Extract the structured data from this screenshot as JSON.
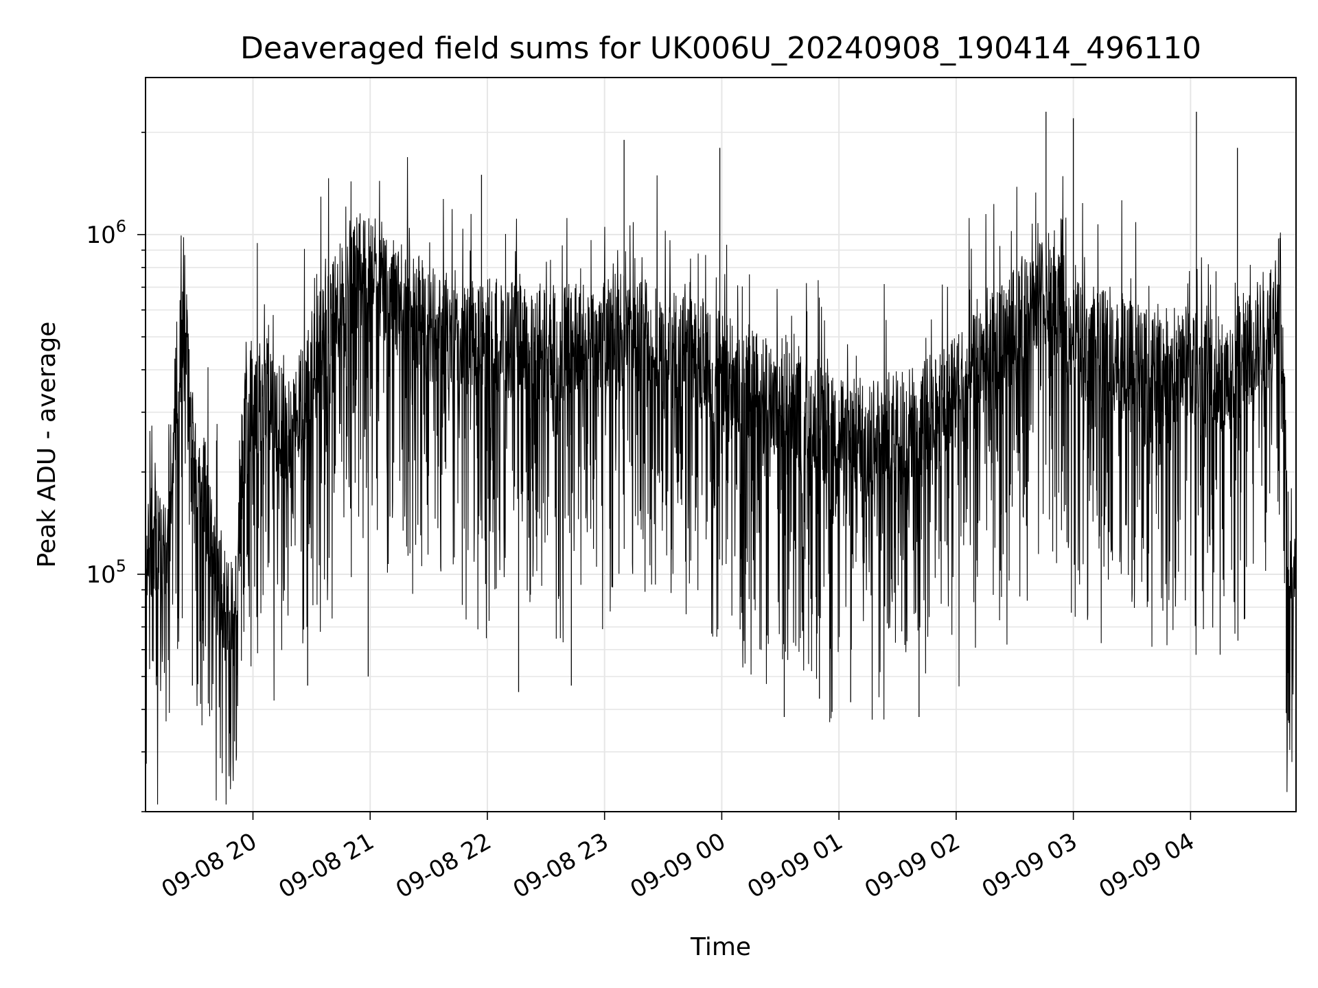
{
  "chart_data": {
    "type": "line",
    "title": "Deaveraged field sums for UK006U_20240908_190414_496110",
    "xlabel": "Time",
    "ylabel": "Peak ADU - average",
    "y_scale": "log",
    "ylim": [
      20000,
      2900000
    ],
    "x_start": "2024-09-08 19:05",
    "x_end": "2024-09-09 04:54",
    "grid": true,
    "line_color": "#000000",
    "x_ticks": [
      {
        "time": "2024-09-08 20:00",
        "label": "09-08 20"
      },
      {
        "time": "2024-09-08 21:00",
        "label": "09-08 21"
      },
      {
        "time": "2024-09-08 22:00",
        "label": "09-08 22"
      },
      {
        "time": "2024-09-08 23:00",
        "label": "09-08 23"
      },
      {
        "time": "2024-09-09 00:00",
        "label": "09-09 00"
      },
      {
        "time": "2024-09-09 01:00",
        "label": "09-09 01"
      },
      {
        "time": "2024-09-09 02:00",
        "label": "09-09 02"
      },
      {
        "time": "2024-09-09 03:00",
        "label": "09-09 03"
      },
      {
        "time": "2024-09-09 04:00",
        "label": "09-09 04"
      }
    ],
    "y_ticks": [
      {
        "value": 100000,
        "base": "10",
        "exp": "5"
      },
      {
        "value": 1000000,
        "base": "10",
        "exp": "6"
      }
    ],
    "series": [
      {
        "points": [
          [
            "2024-09-08 19:05",
            120000
          ],
          [
            "2024-09-08 19:10",
            130000
          ],
          [
            "2024-09-08 19:15",
            110000
          ],
          [
            "2024-09-08 19:20",
            300000
          ],
          [
            "2024-09-08 19:25",
            600000
          ],
          [
            "2024-09-08 19:30",
            200000
          ],
          [
            "2024-09-08 19:35",
            180000
          ],
          [
            "2024-09-08 19:40",
            110000
          ],
          [
            "2024-09-08 19:45",
            90000
          ],
          [
            "2024-09-08 19:50",
            70000
          ],
          [
            "2024-09-08 19:55",
            250000
          ],
          [
            "2024-09-08 20:00",
            350000
          ],
          [
            "2024-09-08 20:10",
            300000
          ],
          [
            "2024-09-08 20:20",
            250000
          ],
          [
            "2024-09-08 20:30",
            400000
          ],
          [
            "2024-09-08 20:40",
            550000
          ],
          [
            "2024-09-08 20:50",
            750000
          ],
          [
            "2024-09-08 21:00",
            800000
          ],
          [
            "2024-09-08 21:15",
            650000
          ],
          [
            "2024-09-08 21:30",
            550000
          ],
          [
            "2024-09-08 21:45",
            500000
          ],
          [
            "2024-09-08 22:00",
            500000
          ],
          [
            "2024-09-08 22:20",
            480000
          ],
          [
            "2024-09-08 22:40",
            480000
          ],
          [
            "2024-09-08 23:00",
            520000
          ],
          [
            "2024-09-08 23:20",
            500000
          ],
          [
            "2024-09-08 23:40",
            450000
          ],
          [
            "2024-09-09 00:00",
            400000
          ],
          [
            "2024-09-09 00:20",
            350000
          ],
          [
            "2024-09-09 00:40",
            300000
          ],
          [
            "2024-09-09 01:00",
            250000
          ],
          [
            "2024-09-09 01:20",
            260000
          ],
          [
            "2024-09-09 01:40",
            280000
          ],
          [
            "2024-09-09 02:00",
            350000
          ],
          [
            "2024-09-09 02:20",
            450000
          ],
          [
            "2024-09-09 02:40",
            650000
          ],
          [
            "2024-09-09 02:50",
            700000
          ],
          [
            "2024-09-09 03:00",
            500000
          ],
          [
            "2024-09-09 03:20",
            450000
          ],
          [
            "2024-09-09 03:40",
            400000
          ],
          [
            "2024-09-09 04:00",
            420000
          ],
          [
            "2024-09-09 04:20",
            380000
          ],
          [
            "2024-09-09 04:40",
            550000
          ],
          [
            "2024-09-09 04:46",
            700000
          ],
          [
            "2024-09-09 04:50",
            120000
          ],
          [
            "2024-09-09 04:54",
            90000
          ]
        ],
        "spikes": [
          [
            "2024-09-08 19:48",
            34000
          ],
          [
            "2024-09-08 19:29",
            47000
          ],
          [
            "2024-09-08 20:28",
            47000
          ],
          [
            "2024-09-08 20:59",
            50000
          ],
          [
            "2024-09-08 22:16",
            45000
          ],
          [
            "2024-09-08 22:43",
            47000
          ],
          [
            "2024-09-09 00:32",
            38000
          ],
          [
            "2024-09-09 00:50",
            43000
          ],
          [
            "2024-09-09 01:06",
            42000
          ],
          [
            "2024-09-09 01:41",
            38000
          ],
          [
            "2024-09-09 04:49",
            39000
          ],
          [
            "2024-09-08 21:57",
            1500000
          ],
          [
            "2024-09-08 23:10",
            1900000
          ],
          [
            "2024-09-08 23:59",
            1800000
          ],
          [
            "2024-09-09 02:46",
            2300000
          ],
          [
            "2024-09-09 03:00",
            2200000
          ],
          [
            "2024-09-09 04:03",
            2300000
          ],
          [
            "2024-09-09 04:24",
            1800000
          ]
        ]
      }
    ]
  }
}
